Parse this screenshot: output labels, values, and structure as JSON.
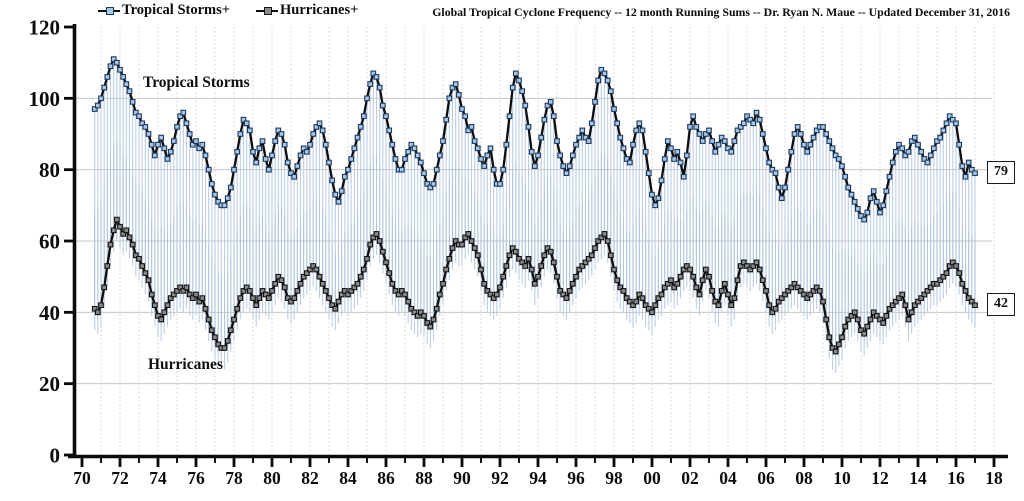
{
  "header": {
    "title": "Global Tropical Cyclone Frequency -- 12 month Running Sums -- Dr. Ryan N. Maue -- Updated December 31, 2016",
    "legend": [
      {
        "label": "Tropical Storms+",
        "marker_fill": "#a9c7e7",
        "marker_stroke": "#1d3a5f",
        "line_color": "#0d0d0d"
      },
      {
        "label": "Hurricanes+",
        "marker_fill": "#8a8a8a",
        "marker_stroke": "#141414",
        "line_color": "#0d0d0d"
      }
    ]
  },
  "chart_data": {
    "type": "line",
    "title": "Global Tropical Cyclone Frequency -- 12 month Running Sums -- Dr. Ryan N. Maue -- Updated December 31, 2016",
    "x_axis": {
      "tick_years": [
        1970,
        1972,
        1974,
        1976,
        1978,
        1980,
        1982,
        1984,
        1986,
        1988,
        1990,
        1992,
        1994,
        1996,
        1998,
        2000,
        2002,
        2004,
        2006,
        2008,
        2010,
        2012,
        2014,
        2016,
        2018
      ],
      "tick_labels": [
        "70",
        "72",
        "74",
        "76",
        "78",
        "80",
        "82",
        "84",
        "86",
        "88",
        "90",
        "92",
        "94",
        "96",
        "98",
        "00",
        "02",
        "04",
        "06",
        "08",
        "10",
        "12",
        "14",
        "16",
        "18"
      ],
      "minor_ticks_every_year": true,
      "range": [
        1969.6,
        2018.9
      ]
    },
    "y_axis": {
      "ticks": [
        0,
        20,
        40,
        60,
        80,
        100,
        120
      ],
      "gridlines": [
        20,
        40,
        60,
        80,
        100
      ],
      "range": [
        0,
        120
      ]
    },
    "x_start": 1970.6667,
    "x_step": 0.166667,
    "series": [
      {
        "name": "Tropical Storms+",
        "line_color": "#0d0d0d",
        "marker_fill": "#a9c7e7",
        "marker_stroke": "#1d3a5f",
        "values": [
          97,
          98,
          100,
          103,
          106,
          109,
          111,
          110,
          108,
          106,
          104,
          102,
          99,
          96,
          95,
          93,
          92,
          90,
          87,
          84,
          87,
          89,
          86,
          83,
          85,
          88,
          92,
          95,
          96,
          93,
          90,
          87,
          88,
          86,
          87,
          84,
          80,
          76,
          73,
          71,
          70,
          70,
          72,
          75,
          80,
          85,
          90,
          94,
          93,
          91,
          85,
          82,
          86,
          88,
          83,
          80,
          84,
          88,
          91,
          90,
          87,
          82,
          79,
          78,
          81,
          84,
          86,
          85,
          87,
          90,
          92,
          93,
          91,
          87,
          82,
          77,
          73,
          71,
          74,
          78,
          80,
          83,
          86,
          89,
          92,
          95,
          100,
          104,
          107,
          106,
          103,
          98,
          95,
          91,
          87,
          83,
          80,
          80,
          83,
          85,
          87,
          86,
          84,
          82,
          79,
          76,
          75,
          76,
          80,
          84,
          88,
          94,
          100,
          103,
          104,
          101,
          97,
          95,
          91,
          92,
          88,
          86,
          83,
          81,
          84,
          86,
          80,
          76,
          76,
          80,
          87,
          95,
          103,
          107,
          105,
          102,
          98,
          92,
          85,
          81,
          84,
          89,
          94,
          98,
          99,
          95,
          88,
          84,
          81,
          79,
          81,
          84,
          87,
          89,
          91,
          89,
          88,
          93,
          99,
          105,
          108,
          107,
          105,
          102,
          97,
          93,
          89,
          86,
          83,
          82,
          87,
          91,
          93,
          91,
          85,
          79,
          73,
          70,
          72,
          77,
          83,
          88,
          86,
          83,
          85,
          82,
          78,
          84,
          92,
          95,
          92,
          90,
          88,
          90,
          91,
          88,
          85,
          87,
          89,
          88,
          86,
          85,
          88,
          91,
          92,
          93,
          95,
          94,
          93,
          96,
          94,
          90,
          86,
          82,
          80,
          79,
          75,
          72,
          75,
          80,
          85,
          90,
          92,
          90,
          87,
          85,
          87,
          89,
          91,
          92,
          92,
          90,
          88,
          86,
          84,
          83,
          81,
          78,
          75,
          73,
          71,
          69,
          67,
          66,
          68,
          72,
          74,
          71,
          68,
          70,
          74,
          78,
          82,
          85,
          87,
          86,
          84,
          85,
          88,
          89,
          87,
          85,
          83,
          82,
          84,
          86,
          88,
          89,
          91,
          93,
          95,
          94,
          93,
          87,
          81,
          78,
          82,
          80,
          79
        ]
      },
      {
        "name": "Hurricanes+",
        "line_color": "#0d0d0d",
        "marker_fill": "#8a8a8a",
        "marker_stroke": "#141414",
        "values": [
          41,
          40,
          42,
          47,
          53,
          59,
          63,
          66,
          64,
          62,
          63,
          61,
          59,
          56,
          55,
          53,
          51,
          49,
          45,
          42,
          39,
          38,
          40,
          42,
          44,
          45,
          46,
          47,
          46,
          47,
          45,
          44,
          45,
          43,
          44,
          41,
          38,
          35,
          33,
          31,
          30,
          30,
          32,
          35,
          38,
          41,
          44,
          46,
          47,
          46,
          44,
          42,
          44,
          46,
          45,
          44,
          46,
          48,
          50,
          49,
          47,
          44,
          43,
          44,
          46,
          48,
          50,
          51,
          52,
          53,
          52,
          50,
          48,
          46,
          44,
          42,
          41,
          43,
          45,
          46,
          45,
          46,
          47,
          48,
          50,
          52,
          55,
          59,
          61,
          62,
          60,
          57,
          54,
          51,
          48,
          46,
          45,
          46,
          45,
          43,
          41,
          40,
          39,
          40,
          39,
          37,
          36,
          38,
          41,
          45,
          48,
          52,
          55,
          58,
          60,
          59,
          59,
          61,
          62,
          60,
          58,
          56,
          52,
          48,
          46,
          45,
          44,
          45,
          47,
          50,
          53,
          56,
          58,
          57,
          55,
          54,
          53,
          55,
          52,
          48,
          50,
          53,
          56,
          58,
          57,
          54,
          50,
          46,
          45,
          44,
          46,
          48,
          50,
          52,
          53,
          54,
          55,
          56,
          58,
          60,
          61,
          62,
          60,
          56,
          52,
          49,
          47,
          46,
          44,
          43,
          42,
          43,
          45,
          44,
          42,
          41,
          40,
          42,
          44,
          45,
          47,
          48,
          49,
          47,
          48,
          50,
          52,
          53,
          52,
          50,
          47,
          45,
          49,
          52,
          50,
          46,
          43,
          42,
          46,
          48,
          45,
          42,
          44,
          49,
          53,
          54,
          53,
          52,
          53,
          54,
          52,
          49,
          46,
          42,
          40,
          41,
          43,
          44,
          45,
          46,
          47,
          48,
          47,
          46,
          45,
          44,
          45,
          46,
          47,
          46,
          43,
          38,
          33,
          30,
          29,
          31,
          33,
          36,
          38,
          39,
          40,
          38,
          35,
          34,
          36,
          38,
          40,
          39,
          38,
          37,
          39,
          41,
          42,
          43,
          44,
          45,
          42,
          38,
          40,
          42,
          43,
          44,
          45,
          46,
          47,
          48,
          48,
          49,
          50,
          51,
          53,
          54,
          53,
          51,
          48,
          46,
          44,
          43,
          42
        ]
      }
    ],
    "drop_lines": {
      "color": "#b5c9e2",
      "offset_below_hurricanes": 6
    },
    "annotations": [
      {
        "text": "Tropical Storms"
      },
      {
        "text": "Hurricanes"
      }
    ],
    "end_labels": [
      {
        "text": "79",
        "value": 79,
        "series": "Tropical Storms+"
      },
      {
        "text": "42",
        "value": 42,
        "series": "Hurricanes+"
      }
    ],
    "legend_position": "top",
    "grid": true
  }
}
